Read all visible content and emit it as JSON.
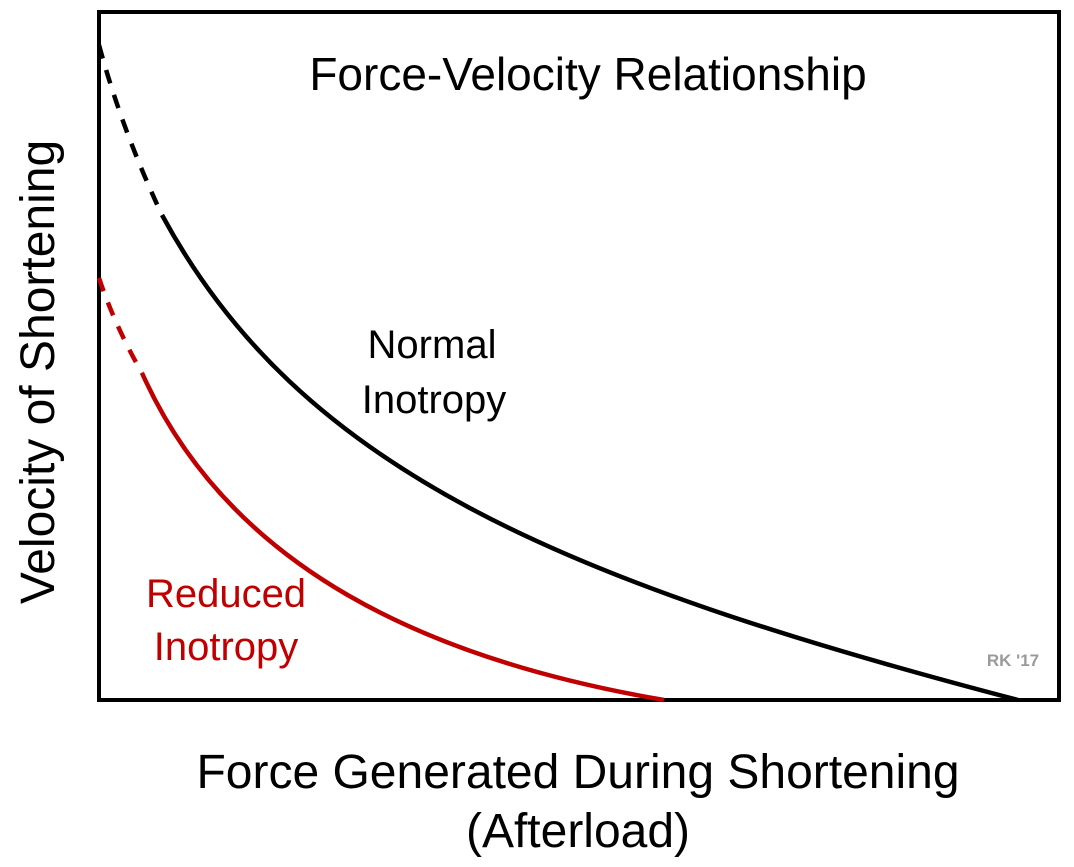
{
  "title": "Force-Velocity Relationship",
  "x_axis_label_line1": "Force Generated During Shortening",
  "x_axis_label_line2": "(Afterload)",
  "y_axis_label": "Velocity of Shortening",
  "curves": [
    {
      "id": "normal",
      "label_line1": "Normal",
      "label_line2": "Inotropy",
      "color": "#000000"
    },
    {
      "id": "reduced",
      "label_line1": "Reduced",
      "label_line2": "Inotropy",
      "color": "#c00000"
    }
  ],
  "credit": "RK '17",
  "credit_color": "#9a9a9a",
  "frame_color": "#000000"
}
